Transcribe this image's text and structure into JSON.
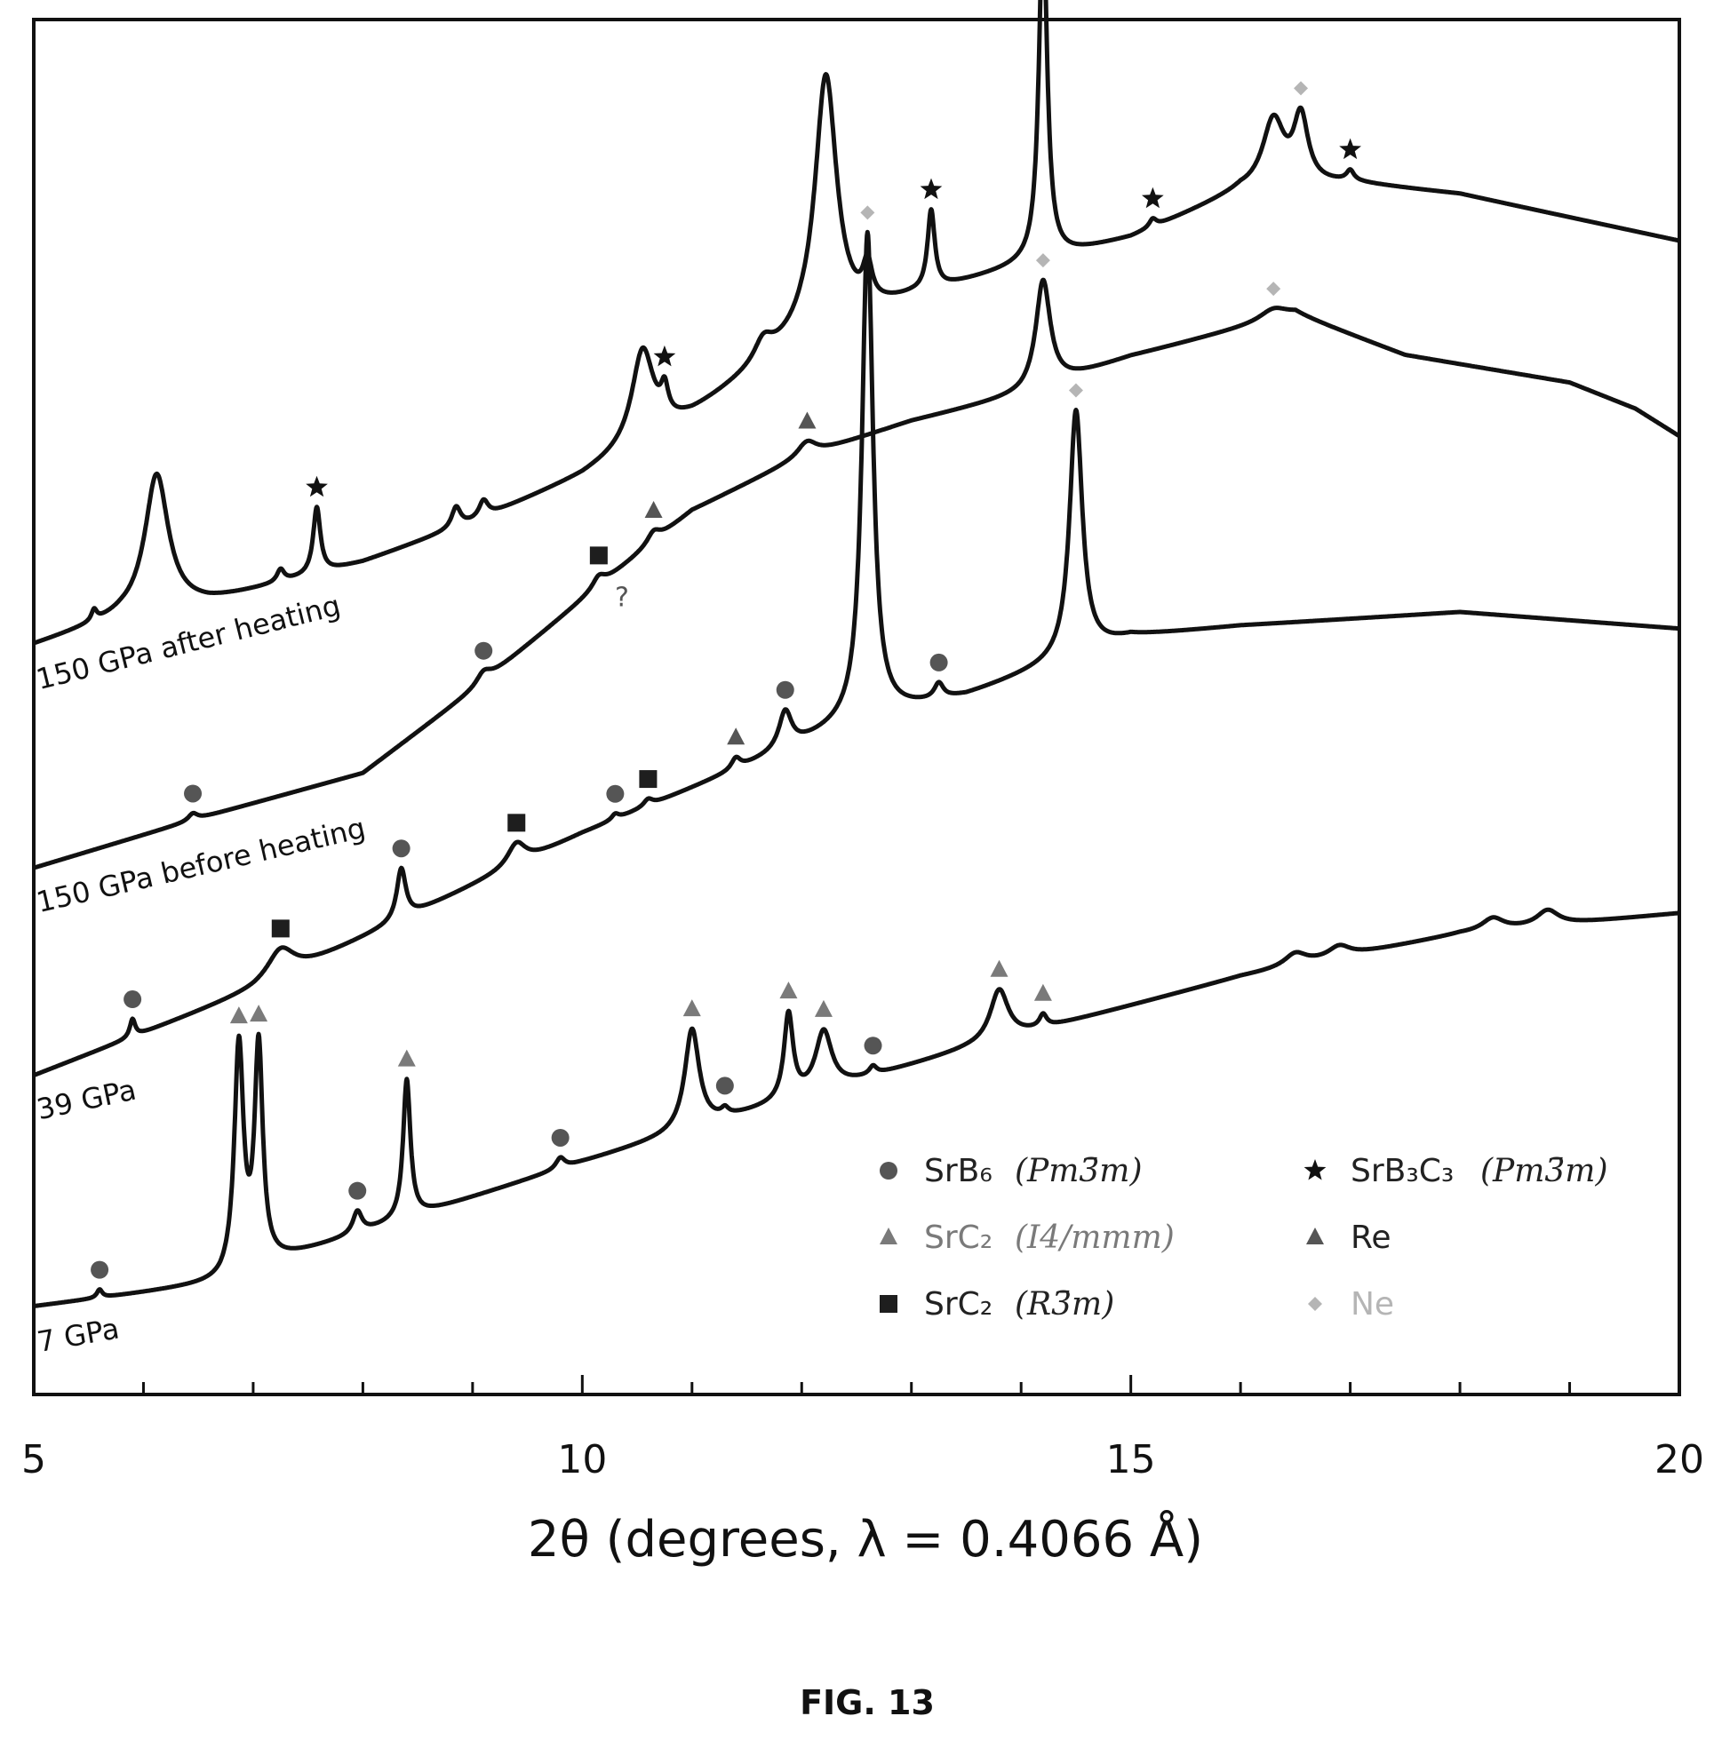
{
  "figure_caption": "FIG. 13",
  "colors": {
    "ink": "#111111",
    "srb6": "#555555",
    "src2_i4": "#7a7a7a",
    "src2_r3": "#1e1e1e",
    "srb3c3": "#111111",
    "re": "#555555",
    "ne": "#b5b5b5"
  },
  "chart_data": {
    "type": "line",
    "title": "",
    "xlabel": "2θ (degrees, λ = 0.4066 Å)",
    "ylabel": "",
    "xlim": [
      5,
      20
    ],
    "ylim": [
      0,
      100
    ],
    "x_ticks": [
      5,
      10,
      15,
      20
    ],
    "x_tick_labels": [
      "5",
      "10",
      "15",
      "20"
    ],
    "grid": false,
    "legend_position": "bottom-right",
    "series": [
      {
        "name": "7 GPa",
        "baseline": [
          [
            5,
            6.4
          ],
          [
            6.7,
            8.1
          ],
          [
            7.2,
            9.7
          ],
          [
            10,
            16.9
          ],
          [
            13.5,
            25.1
          ],
          [
            16,
            30.4
          ],
          [
            18,
            33.5
          ],
          [
            20,
            35
          ]
        ],
        "peaks": [
          {
            "x": 5.6,
            "h": 0.6,
            "w": 0.03,
            "marker": "srb6"
          },
          {
            "x": 6.87,
            "h": 16.5,
            "w": 0.05,
            "marker": "src2_i4"
          },
          {
            "x": 7.05,
            "h": 15.8,
            "w": 0.045,
            "marker": "src2_i4"
          },
          {
            "x": 7.95,
            "h": 1.6,
            "w": 0.05,
            "marker": "srb6"
          },
          {
            "x": 8.4,
            "h": 10.1,
            "w": 0.04,
            "marker": "src2_i4"
          },
          {
            "x": 9.8,
            "h": 0.8,
            "w": 0.05,
            "marker": "srb6"
          },
          {
            "x": 11.0,
            "h": 7.3,
            "w": 0.08,
            "marker": "src2_i4"
          },
          {
            "x": 11.3,
            "h": 0.5,
            "w": 0.04,
            "marker": "srb6"
          },
          {
            "x": 11.88,
            "h": 6.2,
            "w": 0.05,
            "marker": "src2_i4"
          },
          {
            "x": 12.2,
            "h": 4.3,
            "w": 0.09,
            "marker": "src2_i4"
          },
          {
            "x": 12.65,
            "h": 0.6,
            "w": 0.04,
            "marker": "srb6"
          },
          {
            "x": 13.8,
            "h": 3.7,
            "w": 0.1,
            "marker": "src2_i4"
          },
          {
            "x": 14.2,
            "h": 0.9,
            "w": 0.04,
            "marker": "src2_i4"
          },
          {
            "x": 16.5,
            "h": 0.9,
            "w": 0.12,
            "marker": null
          },
          {
            "x": 16.9,
            "h": 0.8,
            "w": 0.12,
            "marker": null
          },
          {
            "x": 18.3,
            "h": 0.9,
            "w": 0.12,
            "marker": null
          },
          {
            "x": 18.8,
            "h": 1.1,
            "w": 0.12,
            "marker": null
          }
        ]
      },
      {
        "name": "39 GPa",
        "baseline": [
          [
            5,
            23.2
          ],
          [
            7,
            29.4
          ],
          [
            10,
            40.8
          ],
          [
            12.5,
            49
          ],
          [
            13.5,
            50.8
          ],
          [
            15,
            55.1
          ],
          [
            16,
            55.9
          ],
          [
            18,
            56.9
          ],
          [
            19,
            56.3
          ],
          [
            20,
            55.7
          ]
        ],
        "peaks": [
          {
            "x": 5.9,
            "h": 1.3,
            "w": 0.03,
            "marker": "srb6"
          },
          {
            "x": 7.25,
            "h": 2.1,
            "w": 0.15,
            "marker": "src2_r3"
          },
          {
            "x": 8.35,
            "h": 3.7,
            "w": 0.05,
            "marker": "srb6"
          },
          {
            "x": 9.4,
            "h": 1.6,
            "w": 0.1,
            "marker": "src2_r3"
          },
          {
            "x": 10.3,
            "h": 0.4,
            "w": 0.04,
            "marker": "srb6"
          },
          {
            "x": 10.6,
            "h": 0.5,
            "w": 0.05,
            "marker": "src2_r3"
          },
          {
            "x": 11.4,
            "h": 0.8,
            "w": 0.05,
            "marker": "re"
          },
          {
            "x": 11.85,
            "h": 2.7,
            "w": 0.07,
            "marker": "srb6"
          },
          {
            "x": 12.6,
            "h": 35.3,
            "w": 0.06,
            "marker": "ne"
          },
          {
            "x": 13.25,
            "h": 1.1,
            "w": 0.05,
            "marker": "srb6"
          },
          {
            "x": 14.5,
            "h": 17.9,
            "w": 0.07,
            "marker": "ne"
          }
        ]
      },
      {
        "name": "150 GPa before heating",
        "baseline": [
          [
            5,
            38.3
          ],
          [
            6.5,
            41.9
          ],
          [
            8,
            45.2
          ],
          [
            9,
            51.2
          ],
          [
            10,
            57.8
          ],
          [
            11,
            64.3
          ],
          [
            12,
            68.2
          ],
          [
            13,
            70.8
          ],
          [
            14,
            72.7
          ],
          [
            15,
            75.5
          ],
          [
            16.5,
            78.6
          ],
          [
            17.5,
            75.6
          ],
          [
            19,
            73.6
          ],
          [
            19.6,
            71.7
          ],
          [
            20,
            69.7
          ]
        ],
        "peaks": [
          {
            "x": 6.45,
            "h": 0.5,
            "w": 0.05,
            "marker": "srb6"
          },
          {
            "x": 9.1,
            "h": 0.8,
            "w": 0.08,
            "marker": "srb6"
          },
          {
            "x": 10.15,
            "h": 0.8,
            "w": 0.07,
            "marker": "src2_r3"
          },
          {
            "x": 10.65,
            "h": 0.8,
            "w": 0.07,
            "marker": "re"
          },
          {
            "x": 12.05,
            "h": 1.0,
            "w": 0.1,
            "marker": "re"
          },
          {
            "x": 14.2,
            "h": 7.8,
            "w": 0.08,
            "marker": "ne"
          },
          {
            "x": 16.3,
            "h": 0.8,
            "w": 0.15,
            "marker": "ne"
          }
        ]
      },
      {
        "name": "150 GPa after heating",
        "baseline": [
          [
            5,
            54.5
          ],
          [
            5.8,
            56.5
          ],
          [
            6.6,
            57.6
          ],
          [
            8,
            60.5
          ],
          [
            9,
            63.4
          ],
          [
            10,
            66.8
          ],
          [
            11,
            71.2
          ],
          [
            12,
            76.7
          ],
          [
            13,
            79.7
          ],
          [
            14,
            82
          ],
          [
            15,
            84.1
          ],
          [
            16,
            87.5
          ],
          [
            17,
            88.1
          ],
          [
            18,
            87.3
          ],
          [
            19,
            85.6
          ],
          [
            20,
            83.9
          ]
        ],
        "peaks": [
          {
            "x": 5.55,
            "h": 0.8,
            "w": 0.03,
            "marker": null
          },
          {
            "x": 6.12,
            "h": 10.0,
            "w": 0.13,
            "marker": null
          },
          {
            "x": 7.25,
            "h": 0.9,
            "w": 0.04,
            "marker": null
          },
          {
            "x": 7.58,
            "h": 4.8,
            "w": 0.04,
            "marker": "srb3c3"
          },
          {
            "x": 8.85,
            "h": 1.5,
            "w": 0.05,
            "marker": null
          },
          {
            "x": 9.1,
            "h": 1.2,
            "w": 0.05,
            "marker": null
          },
          {
            "x": 10.55,
            "h": 6.7,
            "w": 0.12,
            "marker": null
          },
          {
            "x": 10.75,
            "h": 2.0,
            "w": 0.04,
            "marker": "srb3c3"
          },
          {
            "x": 11.65,
            "h": 1.5,
            "w": 0.1,
            "marker": null
          },
          {
            "x": 12.22,
            "h": 18.5,
            "w": 0.12,
            "marker": null
          },
          {
            "x": 12.6,
            "h": 2.7,
            "w": 0.05,
            "marker": null
          },
          {
            "x": 13.18,
            "h": 5.7,
            "w": 0.04,
            "marker": "srb3c3"
          },
          {
            "x": 14.2,
            "h": 24.9,
            "w": 0.045,
            "marker": "ne"
          },
          {
            "x": 15.2,
            "h": 0.6,
            "w": 0.04,
            "marker": "srb3c3"
          },
          {
            "x": 16.3,
            "h": 4.9,
            "w": 0.12,
            "marker": null
          },
          {
            "x": 16.55,
            "h": 4.8,
            "w": 0.08,
            "marker": "ne"
          },
          {
            "x": 17.0,
            "h": 0.7,
            "w": 0.04,
            "marker": "srb3c3"
          }
        ]
      }
    ],
    "annotations": [
      {
        "text": "?",
        "x": 10.2,
        "series": "150 GPa before heating"
      }
    ],
    "legend": [
      {
        "key": "srb6",
        "symbol": "circle",
        "formula": "SrB₆",
        "phase": "(Pm3̄m)",
        "color_key": "srb6"
      },
      {
        "key": "src2_i4",
        "symbol": "triangle",
        "formula": "SrC₂",
        "phase": "(I4/mmm)",
        "color_key": "src2_i4"
      },
      {
        "key": "src2_r3",
        "symbol": "square",
        "formula": "SrC₂",
        "phase": "(R3̄m)",
        "color_key": "src2_r3"
      },
      {
        "key": "srb3c3",
        "symbol": "star",
        "formula": "SrB₃C₃",
        "phase": "(Pm3̄m)",
        "color_key": "srb3c3"
      },
      {
        "key": "re",
        "symbol": "triangle",
        "formula": "Re",
        "phase": "",
        "color_key": "re"
      },
      {
        "key": "ne",
        "symbol": "diamond",
        "formula": "Ne",
        "phase": "",
        "color_key": "ne"
      }
    ]
  }
}
